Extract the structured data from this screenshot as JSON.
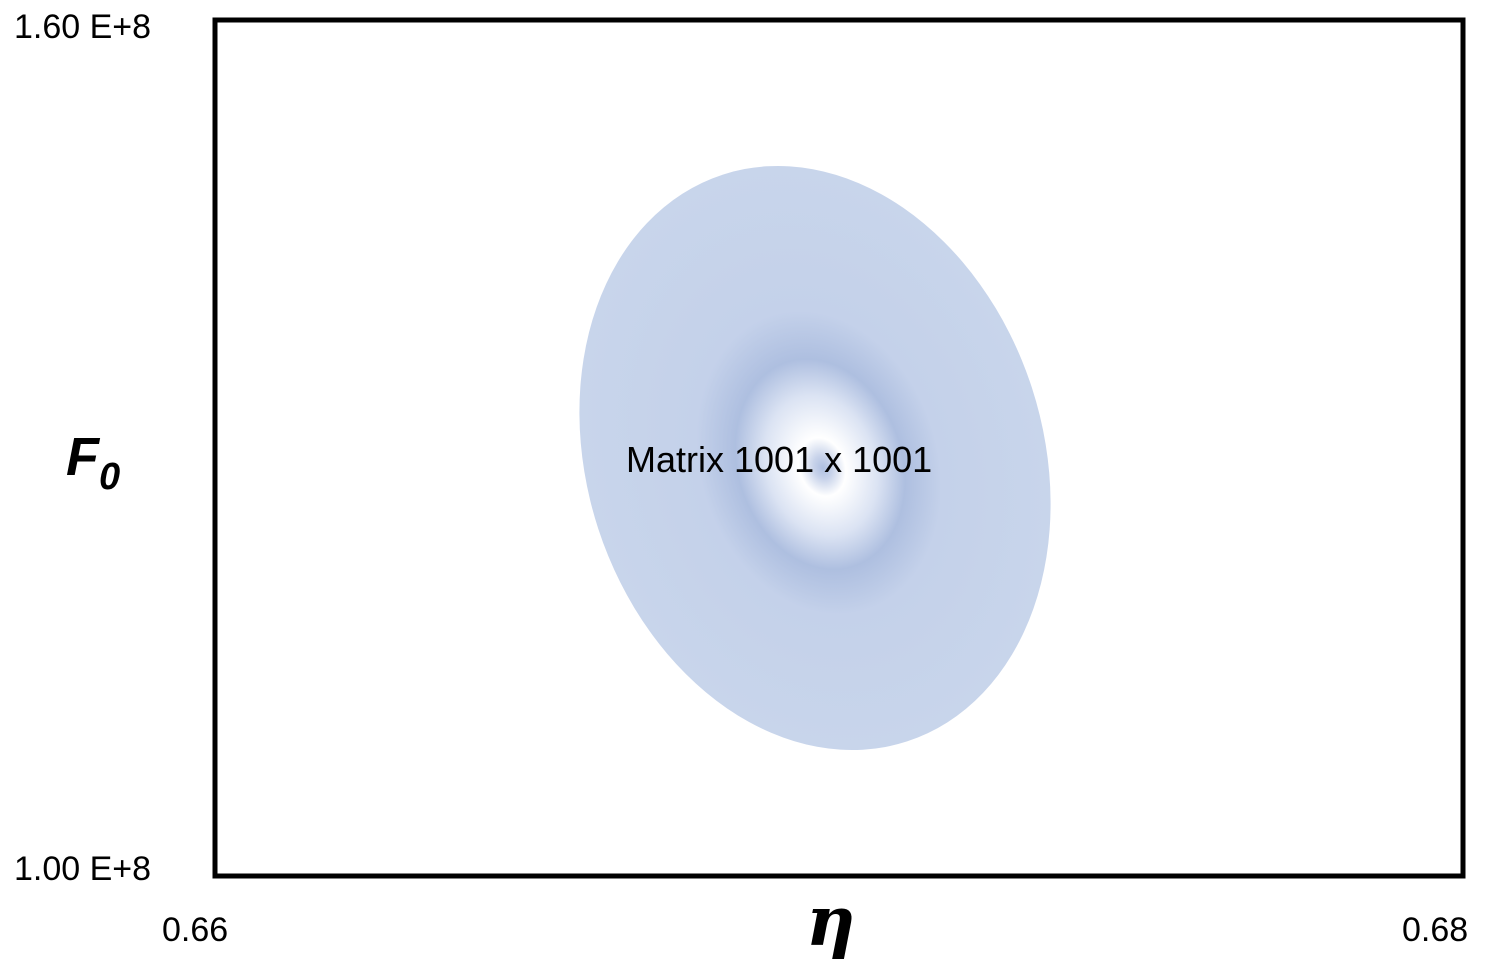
{
  "chart_data": {
    "type": "heatmap",
    "title": "",
    "xlabel": "η",
    "ylabel": "F",
    "ylabel_subscript": "0",
    "xlim": [
      0.66,
      0.68
    ],
    "ylim": [
      100000000,
      160000000
    ],
    "x_ticks": [
      "0.66",
      "0.68"
    ],
    "y_ticks": [
      "1.60 E+8",
      "1.00 E+8"
    ],
    "annotation": "Matrix 1001 x 1001",
    "grid": false,
    "legend": "none",
    "region": {
      "shape": "ellipse",
      "center_eta": 0.6698,
      "center_F0": 131000000,
      "colors": {
        "outer": "#c8d5eb",
        "ring": "#aebfe0",
        "center": "#ffffff"
      }
    }
  }
}
